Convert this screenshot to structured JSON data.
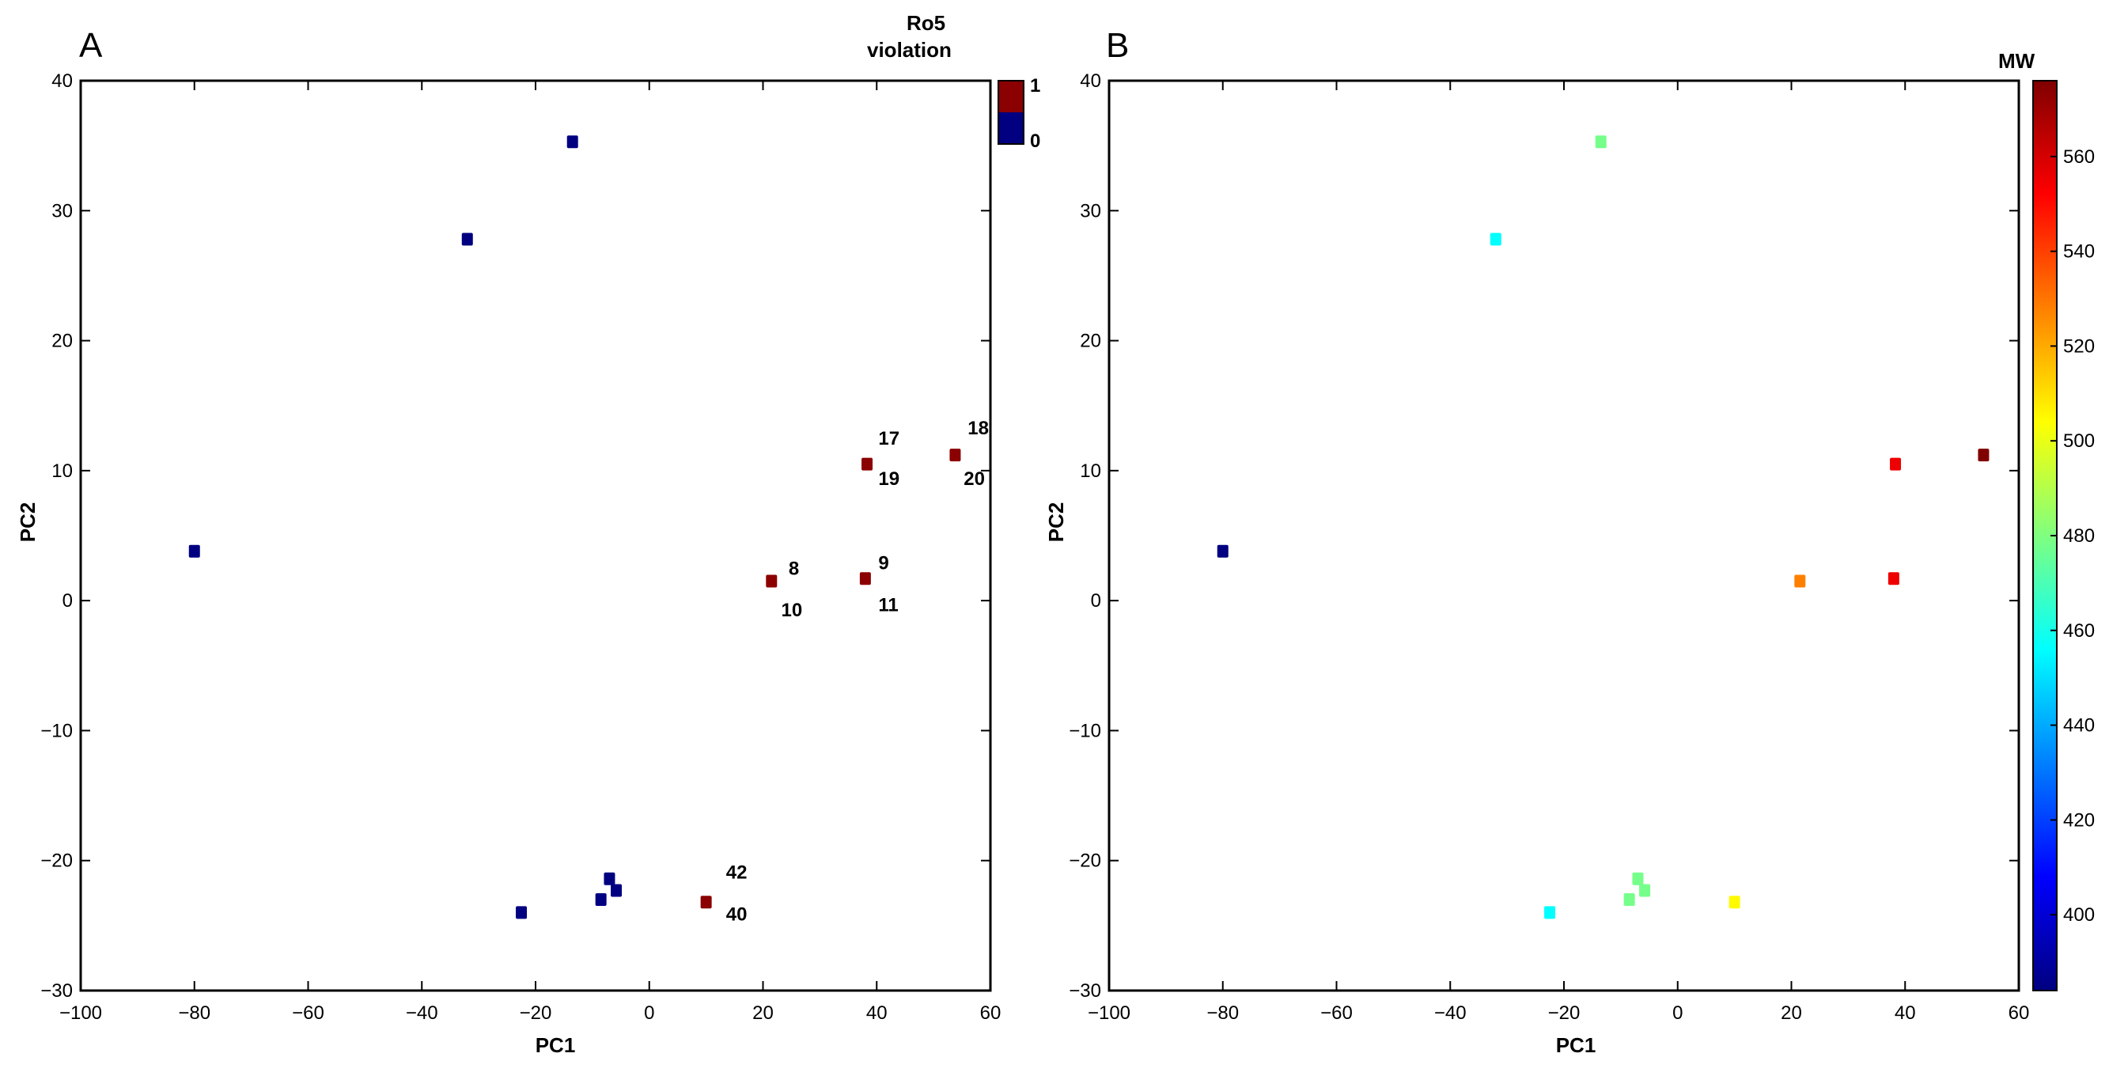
{
  "chart_data": [
    {
      "type": "scatter",
      "panel_label": "A",
      "xlabel": "PC1",
      "ylabel": "PC2",
      "xlim": [
        -100,
        60
      ],
      "ylim": [
        -30,
        40
      ],
      "xticks": [
        -100,
        -80,
        -60,
        -40,
        -20,
        0,
        20,
        40,
        60
      ],
      "yticks": [
        -30,
        -20,
        -10,
        0,
        10,
        20,
        30,
        40
      ],
      "grid": false,
      "colorbar": {
        "title_lines": [
          "Ro5",
          "violation"
        ],
        "ticks": [
          {
            "value": 1,
            "label": "1",
            "color": "#8b0000"
          },
          {
            "value": 0,
            "label": "0",
            "color": "#000080"
          }
        ]
      },
      "points": [
        {
          "x": -80,
          "y": 3.8,
          "violation": 0
        },
        {
          "x": -13.5,
          "y": 35.3,
          "violation": 0
        },
        {
          "x": -32,
          "y": 27.8,
          "violation": 0
        },
        {
          "x": -22.5,
          "y": -24,
          "violation": 0
        },
        {
          "x": -7,
          "y": -21.4,
          "violation": 0
        },
        {
          "x": -8.5,
          "y": -23,
          "violation": 0
        },
        {
          "x": -5.8,
          "y": -22.3,
          "violation": 0
        },
        {
          "x": 10,
          "y": -23.2,
          "violation": 1
        },
        {
          "x": 21.5,
          "y": 1.5,
          "violation": 1
        },
        {
          "x": 38,
          "y": 1.7,
          "violation": 1
        },
        {
          "x": 38.3,
          "y": 10.5,
          "violation": 1
        },
        {
          "x": 53.8,
          "y": 11.2,
          "violation": 1
        }
      ],
      "annotations": [
        {
          "text": "17",
          "x": 40.3,
          "y": 12.0
        },
        {
          "text": "19",
          "x": 40.3,
          "y": 8.9
        },
        {
          "text": "18",
          "x": 56.0,
          "y": 12.8
        },
        {
          "text": "20",
          "x": 55.3,
          "y": 8.9
        },
        {
          "text": "8",
          "x": 24.5,
          "y": 2.0
        },
        {
          "text": "10",
          "x": 23.2,
          "y": -1.2
        },
        {
          "text": "9",
          "x": 40.3,
          "y": 2.4
        },
        {
          "text": "11",
          "x": 40.3,
          "y": -0.8
        },
        {
          "text": "42",
          "x": 13.5,
          "y": -21.4
        },
        {
          "text": "40",
          "x": 13.5,
          "y": -24.6
        }
      ]
    },
    {
      "type": "scatter",
      "panel_label": "B",
      "xlabel": "PC1",
      "ylabel": "PC2",
      "xlim": [
        -100,
        60
      ],
      "ylim": [
        -30,
        40
      ],
      "xticks": [
        -100,
        -80,
        -60,
        -40,
        -20,
        0,
        20,
        40,
        60
      ],
      "yticks": [
        -30,
        -20,
        -10,
        0,
        10,
        20,
        30,
        40
      ],
      "grid": false,
      "colorbar": {
        "title": "MW",
        "range": [
          384,
          576
        ],
        "colormap": "jet",
        "ticks": [
          400,
          420,
          440,
          460,
          480,
          500,
          520,
          540,
          560
        ]
      },
      "points": [
        {
          "x": -80,
          "y": 3.8,
          "mw": 384
        },
        {
          "x": -13.5,
          "y": 35.3,
          "mw": 478
        },
        {
          "x": -32,
          "y": 27.8,
          "mw": 456
        },
        {
          "x": -22.5,
          "y": -24,
          "mw": 456
        },
        {
          "x": -7,
          "y": -21.4,
          "mw": 478
        },
        {
          "x": -8.5,
          "y": -23,
          "mw": 478
        },
        {
          "x": -5.8,
          "y": -22.3,
          "mw": 478
        },
        {
          "x": 10,
          "y": -23.2,
          "mw": 505
        },
        {
          "x": 21.5,
          "y": 1.5,
          "mw": 528
        },
        {
          "x": 38,
          "y": 1.7,
          "mw": 555
        },
        {
          "x": 38.3,
          "y": 10.5,
          "mw": 555
        },
        {
          "x": 53.8,
          "y": 11.2,
          "mw": 576
        }
      ]
    }
  ]
}
